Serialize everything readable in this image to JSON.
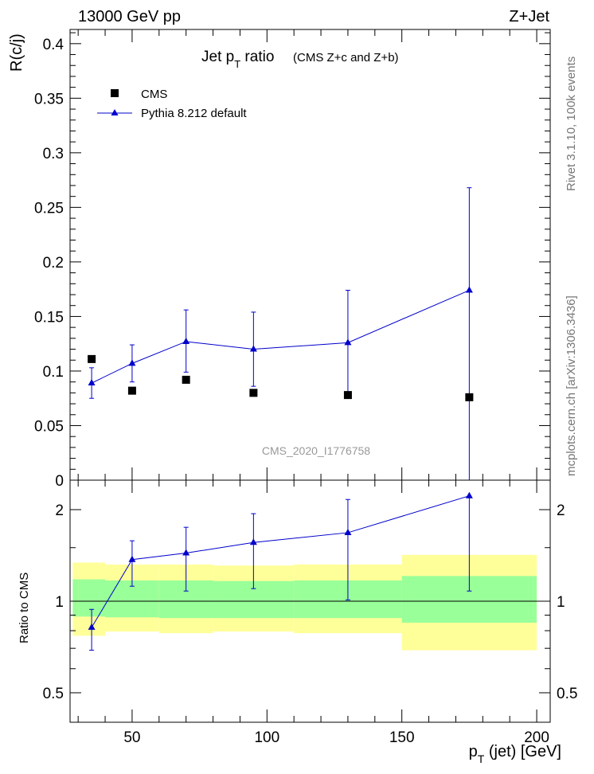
{
  "header": {
    "left": "13000 GeV pp",
    "right": "Z+Jet"
  },
  "side_labels": {
    "rivet": "Rivet 3.1.10,  100k events",
    "mcplots": "mcplots.cern.ch [arXiv:1306.3436]"
  },
  "title": {
    "main_prefix": "Jet p",
    "main_sub": "T",
    "main_suffix": " ratio",
    "detail": "(CMS  Z+c and Z+b)"
  },
  "watermark": "CMS_2020_I1776758",
  "legend": {
    "data_label": "CMS",
    "mc_label": "Pythia 8.212 default"
  },
  "colors": {
    "data": "#000000",
    "mc": "#0000cc",
    "band_inner": "#99ff99",
    "band_outer": "#ffff99",
    "axis": "#000000",
    "watermark": "#999999"
  },
  "chart_data": {
    "type": "scatter",
    "xlabel_prefix": "p",
    "xlabel_sub": "T",
    "xlabel_suffix": " (jet) [GeV]",
    "xlim": [
      27,
      205
    ],
    "x_ticks": [
      50,
      100,
      150,
      200
    ],
    "main": {
      "ylabel": "R(c/j)",
      "ylim": [
        0,
        0.413
      ],
      "y_ticks": [
        0,
        0.05,
        0.1,
        0.15,
        0.2,
        0.25,
        0.3,
        0.35,
        0.4
      ],
      "y_tick_labels": [
        "0",
        "0.05",
        "0.1",
        "0.15",
        "0.2",
        "0.25",
        "0.3",
        "0.35",
        "0.4"
      ],
      "bins": [
        [
          30,
          40
        ],
        [
          40,
          60
        ],
        [
          60,
          80
        ],
        [
          80,
          110
        ],
        [
          110,
          150
        ],
        [
          150,
          200
        ]
      ],
      "series": [
        {
          "name": "CMS",
          "marker": "square",
          "x": [
            35,
            50,
            70,
            95,
            130,
            175
          ],
          "y": [
            0.111,
            0.082,
            0.092,
            0.08,
            0.078,
            0.076
          ]
        },
        {
          "name": "Pythia 8.212 default",
          "marker": "triangle",
          "x": [
            35,
            50,
            70,
            95,
            130,
            175
          ],
          "y": [
            0.089,
            0.107,
            0.127,
            0.12,
            0.126,
            0.174
          ],
          "yerr_low": [
            0.014,
            0.017,
            0.028,
            0.034,
            0.048,
            0.174
          ],
          "yerr_high": [
            0.014,
            0.017,
            0.029,
            0.034,
            0.048,
            0.094
          ]
        }
      ]
    },
    "ratio": {
      "ylabel": "Ratio to CMS",
      "scale": "log",
      "ylim": [
        0.4,
        2.5
      ],
      "y_ticks": [
        0.5,
        1,
        2
      ],
      "y_tick_labels": [
        "0.5",
        "1",
        "2"
      ],
      "bands": [
        {
          "x": [
            28,
            30
          ],
          "inner": [
            0.89,
            1.18
          ],
          "outer": [
            0.77,
            1.34
          ]
        },
        {
          "x": [
            30,
            40
          ],
          "inner": [
            0.89,
            1.18
          ],
          "outer": [
            0.77,
            1.34
          ]
        },
        {
          "x": [
            40,
            60
          ],
          "inner": [
            0.885,
            1.17
          ],
          "outer": [
            0.795,
            1.32
          ]
        },
        {
          "x": [
            60,
            80
          ],
          "inner": [
            0.88,
            1.17
          ],
          "outer": [
            0.785,
            1.32
          ]
        },
        {
          "x": [
            80,
            110
          ],
          "inner": [
            0.88,
            1.165
          ],
          "outer": [
            0.795,
            1.31
          ]
        },
        {
          "x": [
            110,
            150
          ],
          "inner": [
            0.88,
            1.17
          ],
          "outer": [
            0.785,
            1.32
          ]
        },
        {
          "x": [
            150,
            200
          ],
          "inner": [
            0.85,
            1.21
          ],
          "outer": [
            0.69,
            1.42
          ]
        }
      ],
      "mc": {
        "x": [
          35,
          50,
          70,
          95,
          130,
          175
        ],
        "y": [
          0.82,
          1.37,
          1.44,
          1.56,
          1.68,
          2.22
        ],
        "yerr_low": [
          0.13,
          0.25,
          0.36,
          0.46,
          0.67,
          1.14
        ],
        "yerr_high": [
          0.12,
          0.21,
          0.31,
          0.38,
          0.48,
          0.0
        ]
      }
    }
  }
}
